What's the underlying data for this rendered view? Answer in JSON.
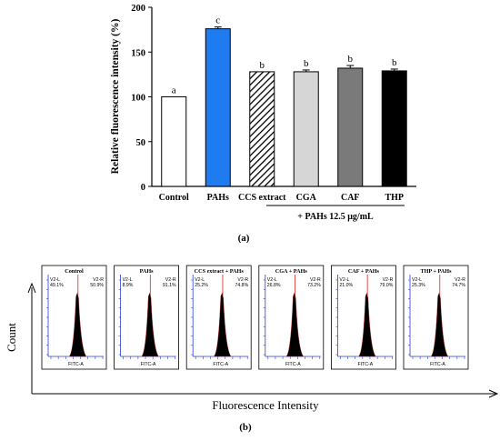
{
  "panel_a": {
    "chart_data": {
      "type": "bar",
      "ylabel": "Relative fluorescence intensity (%)",
      "ylim": [
        0,
        200
      ],
      "yticks": [
        0,
        50,
        100,
        150,
        200
      ],
      "categories": [
        "Control",
        "PAHs",
        "CCS extract",
        "CGA",
        "CAF",
        "THP"
      ],
      "values": [
        100,
        176,
        128,
        128,
        132,
        129
      ],
      "errors": [
        0,
        2,
        0,
        2,
        3,
        2
      ],
      "letters": [
        "a",
        "c",
        "b",
        "b",
        "b",
        "b"
      ],
      "bar_fills": [
        "#ffffff",
        "#1e7bf0",
        "hatch",
        "#d6d6d6",
        "#7a7a7a",
        "#000000"
      ],
      "group_label": "+ PAHs 12.5 μg/mL"
    },
    "label": "(a)"
  },
  "panel_b": {
    "ylabel": "Count",
    "xlabel": "Fluorescence Intensity",
    "label": "(b)",
    "histograms": [
      {
        "title": "Control",
        "left_gate": "V2-L",
        "left_pct": "49.1%",
        "right_gate": "V2-R",
        "right_pct": "50.9%",
        "axis": "FITC-A"
      },
      {
        "title": "PAHs",
        "left_gate": "V2-L",
        "left_pct": "8.9%",
        "right_gate": "V2-R",
        "right_pct": "91.1%",
        "axis": "FITC-A"
      },
      {
        "title": "CCS extract + PAHs",
        "left_gate": "V2-L",
        "left_pct": "25.2%",
        "right_gate": "V2-R",
        "right_pct": "74.8%",
        "axis": "FITC-A"
      },
      {
        "title": "CGA + PAHs",
        "left_gate": "V2-L",
        "left_pct": "26.8%",
        "right_gate": "V2-R",
        "right_pct": "73.2%",
        "axis": "FITC-A"
      },
      {
        "title": "CAF + PAHs",
        "left_gate": "V2-L",
        "left_pct": "21.0%",
        "right_gate": "V2-R",
        "right_pct": "79.0%",
        "axis": "FITC-A"
      },
      {
        "title": "THP + PAHs",
        "left_gate": "V2-L",
        "left_pct": "25.3%",
        "right_gate": "V2-R",
        "right_pct": "74.7%",
        "axis": "FITC-A"
      }
    ],
    "colors": {
      "axis_blue": "#2a3fd6",
      "gate_red": "#e23b3b",
      "peak_black": "#000000"
    }
  }
}
